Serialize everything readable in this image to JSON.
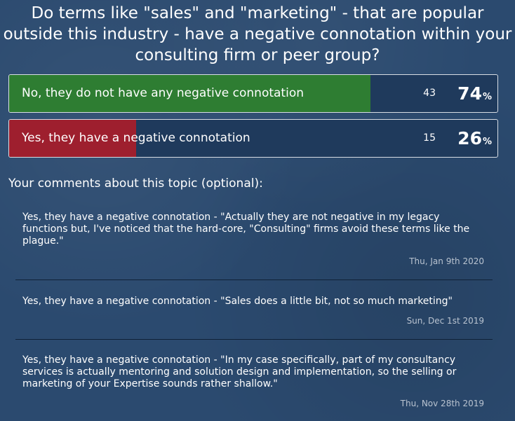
{
  "poll": {
    "question": "Do terms like \"sales\" and \"marketing\" - that are popular outside this industry - have a negative connotation within your consulting firm or peer group?",
    "options": [
      {
        "label": "No, they do not have any negative connotation",
        "count": "43",
        "percent": "74",
        "percent_value": 74,
        "color": "#2e7d32"
      },
      {
        "label": "Yes, they have a negative connotation",
        "count": "15",
        "percent": "26",
        "percent_value": 26,
        "color": "#9e1f2e"
      }
    ],
    "percent_sign": "%"
  },
  "comments": {
    "heading": "Your comments about this topic (optional):",
    "items": [
      {
        "text": "Yes, they have a negative connotation - \"Actually they are not negative in my legacy functions but, I've noticed that the hard-core, \"Consulting\" firms avoid these terms like the plague.\"",
        "date": "Thu, Jan 9th 2020"
      },
      {
        "text": "Yes, they have a negative connotation - \"Sales does a little bit, not so much marketing\"",
        "date": "Sun, Dec 1st 2019"
      },
      {
        "text": "Yes, they have a negative connotation - \"In my case specifically, part of my consultancy services is actually mentoring and solution design and implementation, so the selling or marketing of your Expertise sounds rather shallow.\"",
        "date": "Thu, Nov 28th 2019"
      }
    ]
  }
}
